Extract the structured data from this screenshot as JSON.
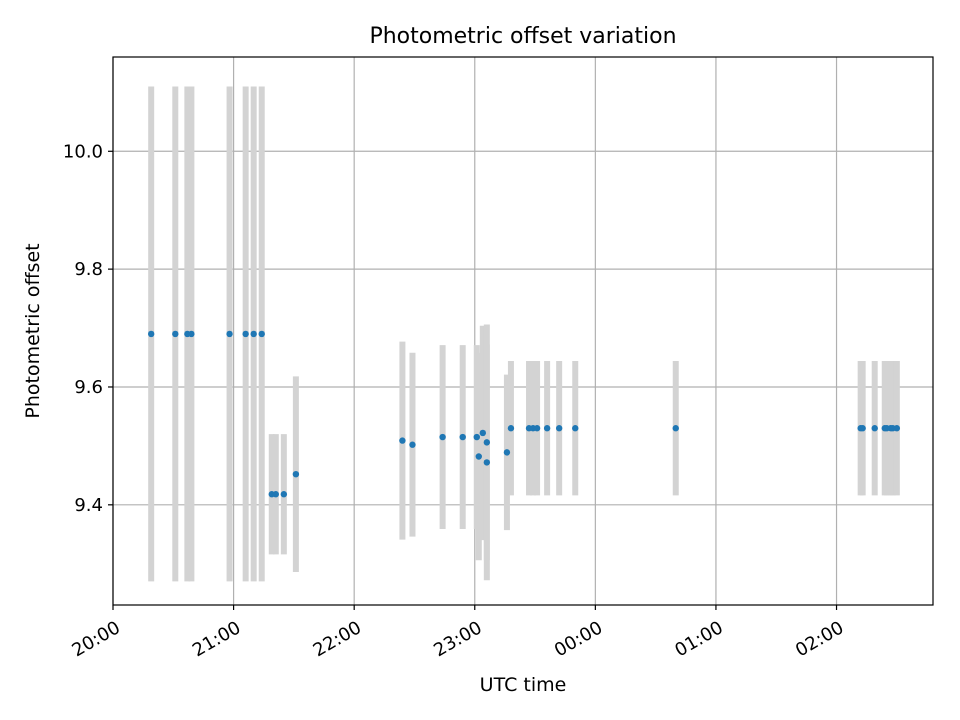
{
  "chart_data": {
    "type": "scatter",
    "title": "Photometric offset variation",
    "xlabel": "UTC time",
    "ylabel": "Photometric offset",
    "grid": true,
    "x_ticks": [
      "20:00",
      "21:00",
      "22:00",
      "23:00",
      "00:00",
      "01:00",
      "02:00"
    ],
    "y_ticks": [
      "9.4",
      "9.6",
      "9.8",
      "10.0"
    ],
    "xlim": [
      "20:00",
      "02:48"
    ],
    "ylim": [
      9.23,
      10.16
    ],
    "colors": {
      "marker": "#1f77b4",
      "errorbar": "#d3d3d3",
      "grid": "#b0b0b0"
    },
    "series": [
      {
        "points": [
          {
            "x": "20:19",
            "y": 9.69,
            "err": 0.42
          },
          {
            "x": "20:31",
            "y": 9.69,
            "err": 0.42
          },
          {
            "x": "20:37",
            "y": 9.69,
            "err": 0.42
          },
          {
            "x": "20:39",
            "y": 9.69,
            "err": 0.42
          },
          {
            "x": "20:58",
            "y": 9.69,
            "err": 0.42
          },
          {
            "x": "21:06",
            "y": 9.69,
            "err": 0.42
          },
          {
            "x": "21:10",
            "y": 9.69,
            "err": 0.42
          },
          {
            "x": "21:14",
            "y": 9.69,
            "err": 0.42
          },
          {
            "x": "21:19",
            "y": 9.418,
            "err": 0.102
          },
          {
            "x": "21:21",
            "y": 9.418,
            "err": 0.102
          },
          {
            "x": "21:25",
            "y": 9.418,
            "err": 0.102
          },
          {
            "x": "21:31",
            "y": 9.452,
            "err": 0.166
          },
          {
            "x": "22:24",
            "y": 9.509,
            "err": 0.168
          },
          {
            "x": "22:29",
            "y": 9.502,
            "err": 0.156
          },
          {
            "x": "22:44",
            "y": 9.515,
            "err": 0.156
          },
          {
            "x": "22:54",
            "y": 9.515,
            "err": 0.156
          },
          {
            "x": "23:01",
            "y": 9.515,
            "err": 0.156
          },
          {
            "x": "23:02",
            "y": 9.482,
            "err": 0.176
          },
          {
            "x": "23:04",
            "y": 9.522,
            "err": 0.182
          },
          {
            "x": "23:06",
            "y": 9.506,
            "err": 0.2
          },
          {
            "x": "23:06",
            "y": 9.472,
            "err": 0.2
          },
          {
            "x": "23:16",
            "y": 9.489,
            "err": 0.132
          },
          {
            "x": "23:18",
            "y": 9.53,
            "err": 0.114
          },
          {
            "x": "23:27",
            "y": 9.53,
            "err": 0.114
          },
          {
            "x": "23:29",
            "y": 9.53,
            "err": 0.114
          },
          {
            "x": "23:31",
            "y": 9.53,
            "err": 0.114
          },
          {
            "x": "23:36",
            "y": 9.53,
            "err": 0.114
          },
          {
            "x": "23:42",
            "y": 9.53,
            "err": 0.114
          },
          {
            "x": "23:50",
            "y": 9.53,
            "err": 0.114
          },
          {
            "x": "00:40",
            "y": 9.53,
            "err": 0.114
          },
          {
            "x": "02:12",
            "y": 9.53,
            "err": 0.114
          },
          {
            "x": "02:13",
            "y": 9.53,
            "err": 0.114
          },
          {
            "x": "02:19",
            "y": 9.53,
            "err": 0.114
          },
          {
            "x": "02:24",
            "y": 9.53,
            "err": 0.114
          },
          {
            "x": "02:25",
            "y": 9.53,
            "err": 0.114
          },
          {
            "x": "02:27",
            "y": 9.53,
            "err": 0.114
          },
          {
            "x": "02:28",
            "y": 9.53,
            "err": 0.114
          },
          {
            "x": "02:30",
            "y": 9.53,
            "err": 0.114
          }
        ]
      }
    ]
  }
}
